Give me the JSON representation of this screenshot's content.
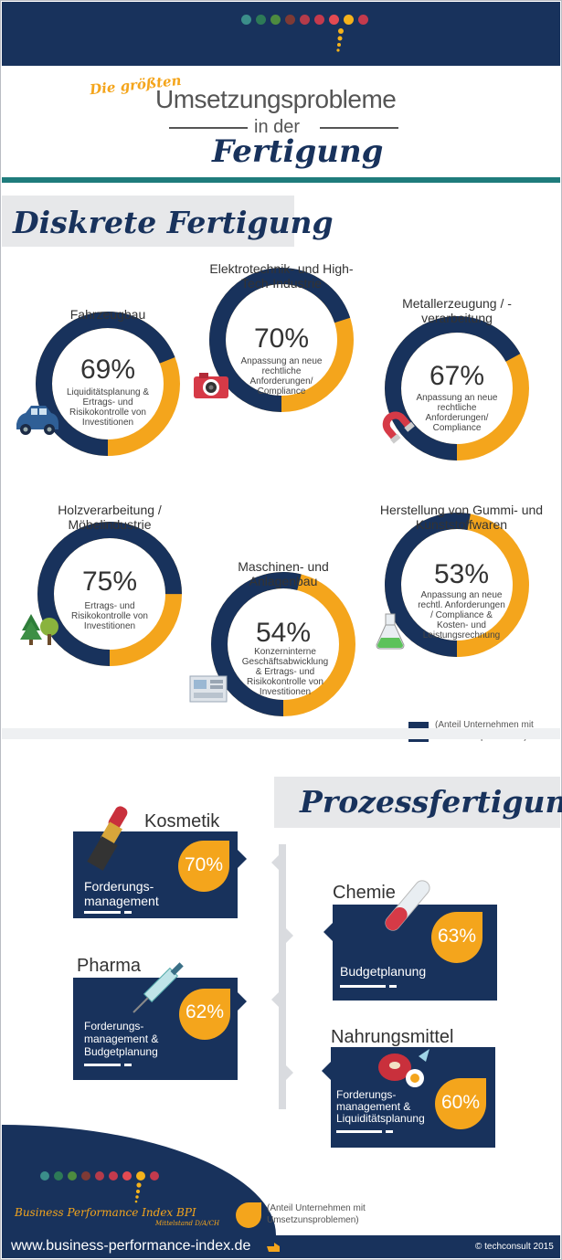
{
  "header": {
    "small": "Die größten",
    "main": "Umsetzungsprobleme",
    "in_der": "in der",
    "fertigung": "Fertigung"
  },
  "colors": {
    "navy": "#18325c",
    "orange": "#f4a51c",
    "teal": "#1f7c7c",
    "grey": "#e7e8ea"
  },
  "dots_colors": [
    "#3b8e8a",
    "#2d7a57",
    "#4d8b3f",
    "#7e3a35",
    "#b43b4a",
    "#c43a4d",
    "#e44a52",
    "#f4b21b",
    "#c43a4d"
  ],
  "diskrete": {
    "title": "Diskrete Fertigung",
    "items": [
      {
        "label": "Fahrzeugbau",
        "pct": "69%",
        "value": 69,
        "desc": "Liquiditätsplanung & Ertrags- und Risikokontrolle von Investitionen",
        "icon": "car-icon"
      },
      {
        "label": "Elektrotechnik- und High-Tech-Industrie",
        "pct": "70%",
        "value": 70,
        "desc": "Anpassung an neue rechtliche Anforderungen/ Compliance",
        "icon": "camera-icon"
      },
      {
        "label": "Metallerzeugung / -verarbeitung",
        "pct": "67%",
        "value": 67,
        "desc": "Anpassung an neue rechtliche Anforderungen/ Compliance",
        "icon": "magnet-icon"
      },
      {
        "label": "Holzverarbeitung / Möbelindustrie",
        "pct": "75%",
        "value": 75,
        "desc": "Ertrags- und Risikokontrolle von Investitionen",
        "icon": "trees-icon"
      },
      {
        "label": "Maschinen- und Anlagenbau",
        "pct": "54%",
        "value": 54,
        "desc": "Konzerninterne Geschäftsabwicklung & Ertrags- und Risikokontrolle von Investitionen",
        "icon": "machine-icon"
      },
      {
        "label": "Herstellung von Gummi- und Kunststoffwaren",
        "pct": "53%",
        "value": 53,
        "desc": "Anpassung an neue rechtl. Anforderungen / Compliance & Kosten- und Leistungsrechnung",
        "icon": "flask-icon"
      }
    ],
    "legend": "(Anteil Unternehmen mit Umsetzunsproblemen)"
  },
  "prozess": {
    "title": "Prozessfertigung",
    "items": [
      {
        "industry": "Kosmetik",
        "pct": "70%",
        "value": 70,
        "desc": "Forderungs-management",
        "icon": "lipstick-icon"
      },
      {
        "industry": "Chemie",
        "pct": "63%",
        "value": 63,
        "desc": "Budgetplanung",
        "icon": "test-tube-icon"
      },
      {
        "industry": "Pharma",
        "pct": "62%",
        "value": 62,
        "desc": "Forderungs-management & Budgetplanung",
        "icon": "syringe-icon"
      },
      {
        "industry": "Nahrungsmittel",
        "pct": "60%",
        "value": 60,
        "desc": "Forderungs-management & Liquiditätsplanung",
        "icon": "food-icon"
      }
    ],
    "legend": "(Anteil Unternehmen mit Umsetzunsproblemen)"
  },
  "bpi": {
    "name": "Business Performance Index BPI",
    "sub": "Mittelstand D/A/CH"
  },
  "footer": {
    "url": "www.business-performance-index.de",
    "copyright": "© techconsult 2015"
  }
}
